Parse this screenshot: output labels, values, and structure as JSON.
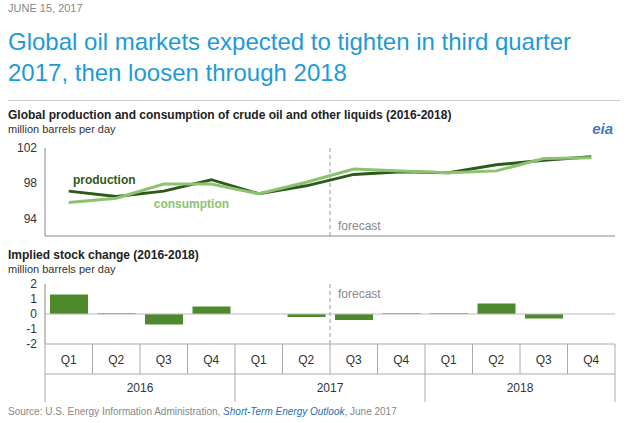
{
  "date": "JUNE 15, 2017",
  "title": "Global oil markets expected to tighten in third quarter 2017, then loosen through 2018",
  "logo": "eia",
  "source": {
    "text": "Source: U.S. Energy Information Administration,",
    "publication": "Short-Term Energy Outlook",
    "date": ", June 2017"
  },
  "chart_data": [
    {
      "type": "line",
      "title": "Global production  and consumption of crude oil and other liquids (2016-2018)",
      "subtitle": "million barrels  per day",
      "categories": [
        "Q1",
        "Q2",
        "Q3",
        "Q4",
        "Q1",
        "Q2",
        "Q3",
        "Q4",
        "Q1",
        "Q2",
        "Q3",
        "Q4"
      ],
      "category_groups": [
        "2016",
        "2016",
        "2016",
        "2016",
        "2017",
        "2017",
        "2017",
        "2017",
        "2018",
        "2018",
        "2018",
        "2018"
      ],
      "forecast": {
        "label": "forecast",
        "start": 6
      },
      "series": [
        {
          "name": "production",
          "color": "#2d5a1b",
          "values": [
            97.1,
            96.5,
            97.1,
            98.4,
            96.8,
            97.7,
            99.0,
            99.3,
            99.2,
            100.1,
            100.6,
            101.0
          ]
        },
        {
          "name": "consumption",
          "color": "#8dc26f",
          "values": [
            95.8,
            96.3,
            97.9,
            97.9,
            96.8,
            98.1,
            99.6,
            99.4,
            99.2,
            99.4,
            100.8,
            100.9
          ]
        }
      ],
      "ylim": [
        92,
        102
      ],
      "yticks": [
        94,
        98,
        102
      ],
      "grid": false,
      "tick_labels": "y"
    },
    {
      "type": "bar",
      "title": "Implied stock change (2016-2018)",
      "subtitle": "million barrels  per day",
      "categories": [
        "Q1",
        "Q2",
        "Q3",
        "Q4",
        "Q1",
        "Q2",
        "Q3",
        "Q4",
        "Q1",
        "Q2",
        "Q3",
        "Q4"
      ],
      "category_groups": [
        "2016",
        "2016",
        "2016",
        "2016",
        "2017",
        "2017",
        "2017",
        "2017",
        "2018",
        "2018",
        "2018",
        "2018"
      ],
      "forecast": {
        "label": "forecast",
        "start": 6
      },
      "values": [
        1.3,
        0.05,
        -0.7,
        0.5,
        0.0,
        -0.2,
        -0.4,
        0.05,
        0.05,
        0.7,
        -0.3,
        0.0
      ],
      "color": "#4e8a2c",
      "ylim": [
        -2,
        2
      ],
      "yticks": [
        -2,
        -1,
        0,
        1,
        2
      ],
      "grid": false
    }
  ]
}
